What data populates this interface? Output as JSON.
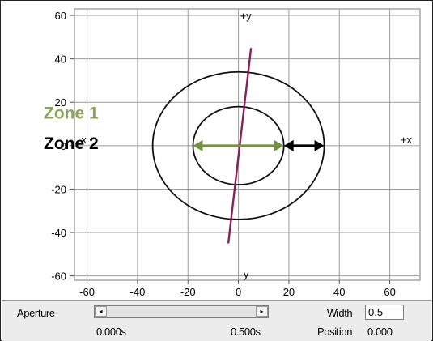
{
  "chart_data": {
    "type": "line",
    "x_ticks": [
      "-60",
      "-40",
      "-20",
      "0",
      "20",
      "40",
      "60"
    ],
    "y_ticks": [
      "60",
      "40",
      "20",
      "0",
      "-20",
      "-40",
      "-60"
    ],
    "xlim": [
      -65,
      72
    ],
    "ylim": [
      -62,
      63
    ],
    "grid": true,
    "axis_labels": {
      "x_pos": "+x",
      "x_neg": "-x",
      "y_pos": "+y",
      "y_neg": "-y"
    },
    "circles": [
      {
        "name": "Zone 1",
        "radius_x": 18,
        "radius_y": 18,
        "color": "#111111"
      },
      {
        "name": "Zone 2",
        "radius_x": 34,
        "radius_y": 34,
        "color": "#111111"
      }
    ],
    "line": {
      "color": "#8a1f5a",
      "points": [
        [
          -4,
          -45
        ],
        [
          5,
          45
        ]
      ]
    },
    "arrows": [
      {
        "from": -18,
        "to": 18,
        "y": 0,
        "color": "#74913f"
      },
      {
        "from": 18,
        "to": 34,
        "y": 0,
        "color": "#000000"
      }
    ],
    "zone_labels": [
      {
        "text": "Zone 1",
        "color": "#8aa55a",
        "y": 15
      },
      {
        "text": "Zone 2",
        "color": "#000000",
        "y": 1
      }
    ]
  },
  "controls": {
    "aperture_label": "Aperture",
    "scroll_left": "◂",
    "scroll_right": "▸",
    "time_start": "0.000s",
    "time_end": "0.500s",
    "width_label": "Width",
    "width_value": "0.5",
    "position_label": "Position",
    "position_value": "0.000"
  }
}
